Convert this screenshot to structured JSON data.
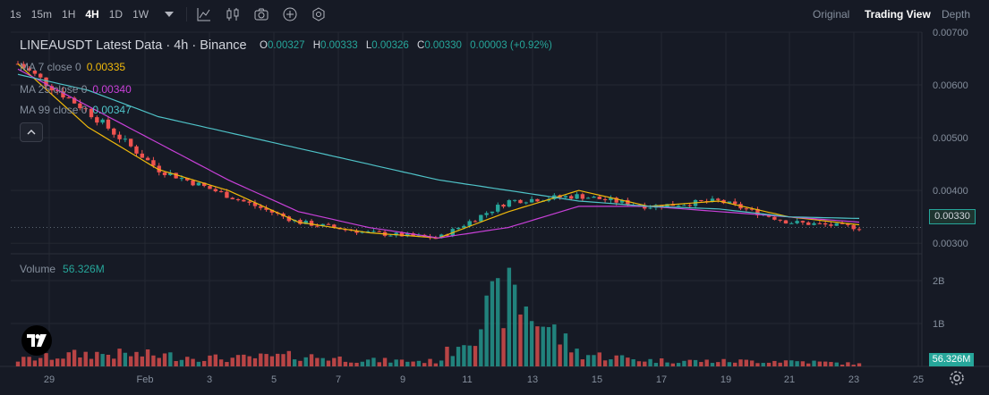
{
  "toolbar": {
    "intervals": [
      "1s",
      "15m",
      "1H",
      "4H",
      "1D",
      "1W"
    ],
    "active_interval": "4H",
    "dropdown_icon": "chevron-down-icon",
    "tool_icons": [
      "indicators-icon",
      "chart-type-icon",
      "camera-icon",
      "add-icon",
      "settings-icon"
    ],
    "views": [
      "Original",
      "Trading View",
      "Depth"
    ],
    "active_view": "Trading View"
  },
  "legend": {
    "title": "LINEAUSDT Latest Data · 4h · Binance",
    "ohlc": {
      "O": "0.00327",
      "H": "0.00333",
      "L": "0.00326",
      "C": "0.00330",
      "change": "0.00003 (+0.92%)"
    },
    "ma": [
      {
        "label": "MA 7 close 0",
        "value": "0.00335",
        "color": "#f0b90b"
      },
      {
        "label": "MA 25 close 0",
        "value": "0.00340",
        "color": "#c840d8"
      },
      {
        "label": "MA 99 close 0",
        "value": "0.00347",
        "color": "#4fc3c8"
      }
    ]
  },
  "volume": {
    "label": "Volume",
    "value": "56.326M"
  },
  "price_axis": {
    "ticks": [
      "0.00700",
      "0.00600",
      "0.00500",
      "0.00400",
      "0.00300"
    ],
    "current_price": "0.00330"
  },
  "volume_axis": {
    "ticks": [
      "2B",
      "1B"
    ],
    "current": "56.326M"
  },
  "time_axis": {
    "ticks": [
      "29",
      "Feb",
      "3",
      "5",
      "7",
      "9",
      "11",
      "13",
      "15",
      "17",
      "19",
      "21",
      "23",
      "25"
    ]
  },
  "colors": {
    "up": "#26a69a",
    "down": "#ef5350",
    "background": "#161a25"
  },
  "chart_data": {
    "type": "line",
    "title": "LINEAUSDT Latest Data · 4h · Binance",
    "x": [
      "29",
      "Feb",
      "3",
      "5",
      "7",
      "9",
      "11",
      "13",
      "15",
      "17",
      "19",
      "21",
      "23"
    ],
    "series": [
      {
        "name": "MA 7 close 0",
        "values": [
          0.0064,
          0.0052,
          0.0044,
          0.004,
          0.0034,
          0.0032,
          0.0031,
          0.0036,
          0.004,
          0.0037,
          0.0038,
          0.0035,
          0.00335
        ]
      },
      {
        "name": "MA 25 close 0",
        "values": [
          0.0063,
          0.0056,
          0.0049,
          0.0042,
          0.0036,
          0.0033,
          0.0031,
          0.0033,
          0.0037,
          0.0037,
          0.0036,
          0.0035,
          0.0034
        ]
      },
      {
        "name": "MA 99 close 0",
        "values": [
          0.0062,
          0.0059,
          0.0054,
          0.0051,
          0.0048,
          0.0045,
          0.0042,
          0.004,
          0.0038,
          0.0037,
          0.00365,
          0.0035,
          0.00347
        ]
      }
    ],
    "close": [
      0.0064,
      0.0055,
      0.0044,
      0.0039,
      0.0034,
      0.0032,
      0.0031,
      0.0038,
      0.0039,
      0.0037,
      0.0038,
      0.0034,
      0.0033
    ],
    "volume_millions": [
      150,
      300,
      260,
      180,
      250,
      140,
      120,
      1700,
      300,
      140,
      120,
      130,
      56.326
    ],
    "ylim": [
      0.0028,
      0.007
    ],
    "y_ticks": [
      0.003,
      0.004,
      0.005,
      0.006,
      0.007
    ],
    "volume_ylim_billions": [
      0,
      2.5
    ],
    "grid": true
  }
}
